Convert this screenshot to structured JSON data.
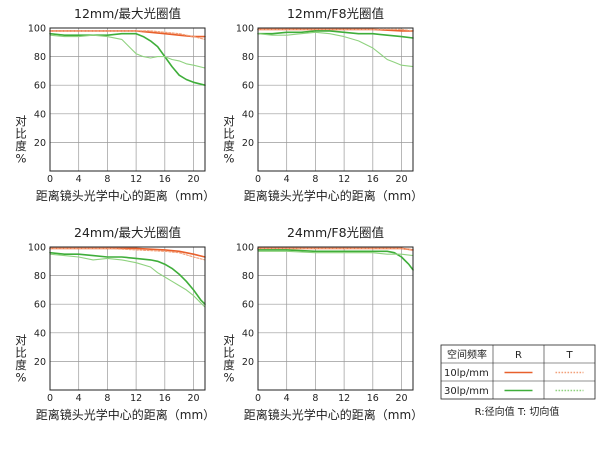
{
  "colors": {
    "r10": "#e8602c",
    "t10": "#f2a07a",
    "r30": "#3fae3a",
    "t30": "#8fd27f",
    "grid": "#9a9a9a",
    "frame": "#222222"
  },
  "common": {
    "xlabel": "距离镜头光学中心的距离（mm）",
    "ylabel": [
      "对",
      "比",
      "度",
      "%"
    ],
    "xticks": [
      0,
      4,
      8,
      12,
      16,
      20
    ],
    "yticks": [
      20,
      40,
      60,
      80,
      100
    ],
    "xlim": [
      0,
      21.6
    ],
    "ylim": [
      0,
      100
    ]
  },
  "legend": {
    "header": [
      "空间频率",
      "R",
      "T"
    ],
    "rows": [
      "10lp/mm",
      "30lp/mm"
    ],
    "note": "R:径向值  T:  切向值"
  },
  "chart_data": [
    {
      "type": "line",
      "title": "12mm/最大光圈值",
      "series": [
        {
          "name": "10lp/mm R",
          "x": [
            0,
            2,
            4,
            6,
            8,
            10,
            12,
            14,
            16,
            18,
            20,
            21.6
          ],
          "values": [
            98,
            98,
            98,
            98,
            98,
            98,
            98,
            97,
            96,
            95,
            94,
            94
          ]
        },
        {
          "name": "10lp/mm T",
          "x": [
            0,
            2,
            4,
            6,
            8,
            10,
            12,
            14,
            16,
            18,
            20,
            21.6
          ],
          "values": [
            98,
            98,
            98,
            98,
            98,
            98,
            98,
            98,
            97,
            96,
            94,
            92
          ]
        },
        {
          "name": "30lp/mm R",
          "x": [
            0,
            2,
            4,
            6,
            8,
            10,
            12,
            13,
            14,
            15,
            16,
            17,
            18,
            19,
            20,
            21.6
          ],
          "values": [
            96,
            95,
            95,
            95,
            95,
            96,
            96,
            94,
            91,
            87,
            80,
            73,
            67,
            64,
            62,
            60
          ]
        },
        {
          "name": "30lp/mm T",
          "x": [
            0,
            2,
            4,
            6,
            8,
            10,
            12,
            13,
            14,
            15,
            16,
            17,
            18,
            19,
            20,
            21.6
          ],
          "values": [
            95,
            94,
            94,
            95,
            94,
            92,
            82,
            80,
            79,
            80,
            80,
            78,
            77,
            75,
            74,
            72
          ]
        }
      ]
    },
    {
      "type": "line",
      "title": "12mm/F8光圈值",
      "series": [
        {
          "name": "10lp/mm R",
          "x": [
            0,
            4,
            8,
            12,
            16,
            20,
            21.6
          ],
          "values": [
            99,
            99,
            99,
            99,
            99,
            98,
            98
          ]
        },
        {
          "name": "10lp/mm T",
          "x": [
            0,
            4,
            8,
            12,
            16,
            20,
            21.6
          ],
          "values": [
            99,
            99,
            99,
            99,
            99,
            99,
            98
          ]
        },
        {
          "name": "30lp/mm R",
          "x": [
            0,
            2,
            4,
            6,
            8,
            10,
            12,
            14,
            16,
            18,
            20,
            21.6
          ],
          "values": [
            96,
            96,
            97,
            97,
            98,
            98,
            97,
            96,
            96,
            95,
            94,
            93
          ]
        },
        {
          "name": "30lp/mm T",
          "x": [
            0,
            2,
            4,
            6,
            8,
            10,
            12,
            14,
            16,
            17,
            18,
            19,
            20,
            21.6
          ],
          "values": [
            96,
            95,
            95,
            96,
            97,
            96,
            94,
            91,
            86,
            82,
            78,
            76,
            74,
            73
          ]
        }
      ]
    },
    {
      "type": "line",
      "title": "24mm/最大光圈值",
      "series": [
        {
          "name": "10lp/mm R",
          "x": [
            0,
            4,
            8,
            12,
            16,
            18,
            20,
            21.6
          ],
          "values": [
            99,
            99,
            99,
            99,
            98,
            97,
            95,
            93
          ]
        },
        {
          "name": "10lp/mm T",
          "x": [
            0,
            4,
            8,
            12,
            16,
            18,
            20,
            21.6
          ],
          "values": [
            99,
            99,
            99,
            98,
            97,
            96,
            93,
            91
          ]
        },
        {
          "name": "30lp/mm R",
          "x": [
            0,
            2,
            4,
            6,
            8,
            10,
            12,
            14,
            15,
            16,
            17,
            18,
            19,
            20,
            21,
            21.6
          ],
          "values": [
            96,
            95,
            95,
            94,
            93,
            93,
            92,
            91,
            90,
            88,
            85,
            81,
            76,
            70,
            63,
            60
          ]
        },
        {
          "name": "30lp/mm T",
          "x": [
            0,
            2,
            4,
            6,
            8,
            10,
            12,
            14,
            15,
            16,
            17,
            18,
            19,
            20,
            21,
            21.6
          ],
          "values": [
            95,
            94,
            93,
            91,
            92,
            91,
            89,
            86,
            82,
            79,
            76,
            73,
            70,
            66,
            61,
            58
          ]
        }
      ]
    },
    {
      "type": "line",
      "title": "24mm/F8光圈值",
      "series": [
        {
          "name": "10lp/mm R",
          "x": [
            0,
            4,
            8,
            12,
            16,
            20,
            21.6
          ],
          "values": [
            99,
            99,
            99,
            99,
            99,
            99,
            98
          ]
        },
        {
          "name": "10lp/mm T",
          "x": [
            0,
            4,
            8,
            12,
            16,
            20,
            21.6
          ],
          "values": [
            99,
            99,
            99,
            99,
            99,
            99,
            98
          ]
        },
        {
          "name": "30lp/mm R",
          "x": [
            0,
            4,
            8,
            12,
            16,
            18,
            19,
            20,
            21,
            21.6
          ],
          "values": [
            98,
            98,
            97,
            97,
            97,
            97,
            96,
            93,
            88,
            84
          ]
        },
        {
          "name": "30lp/mm T",
          "x": [
            0,
            4,
            8,
            12,
            16,
            18,
            20,
            21.6
          ],
          "values": [
            97,
            97,
            96,
            96,
            96,
            95,
            95,
            94
          ]
        }
      ]
    }
  ]
}
